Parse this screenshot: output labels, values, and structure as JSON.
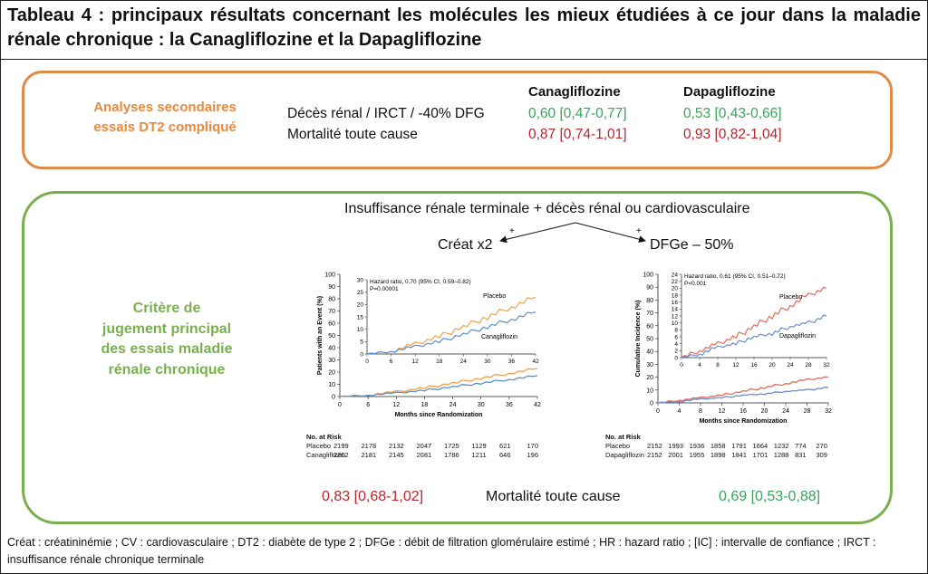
{
  "title": "Tableau 4 : principaux résultats concernant les molécules les mieux étudiées à ce jour dans la maladie rénale chronique : la Canagliflozine et la Dapagliflozine",
  "secondary": {
    "label_line1": "Analyses secondaires",
    "label_line2": "essais DT2 compliqué",
    "col1": "Canagliflozine",
    "col2": "Dapagliflozine",
    "rows": [
      {
        "label": "Décès rénal / IRCT / -40% DFG",
        "cana": "0,60 [0,47-0,77]",
        "dapa": "0,53 [0,43-0,66]"
      },
      {
        "label": "Mortalité toute cause",
        "cana": "0,87 [0,74-1,01]",
        "dapa": "0,93 [0,82-1,04]"
      }
    ]
  },
  "primary": {
    "label_lines": [
      "Critère de",
      "jugement principal",
      "des essais maladie",
      "rénale chronique"
    ],
    "endpoint": "Insuffisance rénale terminale + décès rénal ou cardiovasculaire",
    "component_left": "Créat x2",
    "component_right": "DFGe – 50%",
    "plus": "+",
    "bottom_left": "0,83 [0,68-1,02]",
    "bottom_center": "Mortalité toute cause",
    "bottom_right": "0,69 [0,53-0,88]"
  },
  "chart_data": [
    {
      "type": "line",
      "title": "",
      "xlabel": "Months since Randomization",
      "ylabel": "Patients with an Event (%)",
      "xlim": [
        0,
        42
      ],
      "ylim": [
        0,
        100
      ],
      "xticks": [
        0,
        6,
        12,
        18,
        24,
        30,
        36,
        42
      ],
      "yticks": [
        0,
        10,
        20,
        30,
        40,
        50,
        60,
        70,
        80,
        90,
        100
      ],
      "series": [
        {
          "name": "Placebo",
          "color": "#f0a04b",
          "x": [
            0,
            6,
            12,
            18,
            24,
            30,
            36,
            42
          ],
          "y": [
            0,
            1,
            4,
            7,
            11,
            15,
            19,
            23
          ]
        },
        {
          "name": "Canagliflozin",
          "color": "#5b8fd1",
          "x": [
            0,
            6,
            12,
            18,
            24,
            30,
            36,
            42
          ],
          "y": [
            0,
            1,
            3,
            5,
            8,
            11,
            14,
            17
          ]
        }
      ],
      "inset": {
        "annotation_line1": "Hazard ratio, 0.70 (95% CI, 0.59–0.82)",
        "annotation_line2": "P=0.00001",
        "xticks": [
          0,
          6,
          12,
          18,
          24,
          30,
          36,
          42
        ],
        "yticks": [
          0,
          5,
          10,
          15,
          20,
          25,
          30
        ],
        "ylim": [
          0,
          30
        ],
        "label_placebo": "Placebo",
        "label_drug": "Canagliflozin"
      },
      "risk": {
        "heading": "No. at Risk",
        "rows": [
          {
            "name": "Placebo",
            "values": [
              "2199",
              "2178",
              "2132",
              "2047",
              "1725",
              "1129",
              "621",
              "170"
            ]
          },
          {
            "name": "Canagliflozin",
            "values": [
              "2202",
              "2181",
              "2145",
              "2081",
              "1786",
              "1211",
              "646",
              "196"
            ]
          }
        ]
      }
    },
    {
      "type": "line",
      "title": "",
      "xlabel": "Months since Randomization",
      "ylabel": "Cumulative Incidence (%)",
      "xlim": [
        0,
        32
      ],
      "ylim": [
        0,
        100
      ],
      "xticks": [
        0,
        4,
        8,
        12,
        16,
        20,
        24,
        28,
        32
      ],
      "yticks": [
        0,
        10,
        20,
        30,
        40,
        50,
        60,
        70,
        80,
        90,
        100
      ],
      "series": [
        {
          "name": "Placebo",
          "color": "#e36b5c",
          "x": [
            0,
            4,
            8,
            12,
            16,
            20,
            24,
            28,
            32
          ],
          "y": [
            0,
            2,
            4,
            6,
            9,
            12,
            15,
            18,
            20
          ]
        },
        {
          "name": "Dapagliflozin",
          "color": "#6b8fc9",
          "x": [
            0,
            4,
            8,
            12,
            16,
            20,
            24,
            28,
            32
          ],
          "y": [
            0,
            1,
            3,
            4,
            6,
            7,
            9,
            10,
            12
          ]
        }
      ],
      "inset": {
        "annotation_line1": "Hazard ratio, 0.61 (95% CI, 0.51–0.72)",
        "annotation_line2": "P<0.001",
        "xticks": [
          0,
          4,
          8,
          12,
          16,
          20,
          24,
          28,
          32
        ],
        "yticks": [
          0,
          2,
          4,
          6,
          8,
          10,
          12,
          14,
          16,
          18,
          20,
          22,
          24
        ],
        "ylim": [
          0,
          24
        ],
        "label_placebo": "Placebo",
        "label_drug": "Dapagliflozin"
      },
      "risk": {
        "heading": "No. at Risk",
        "rows": [
          {
            "name": "Placebo",
            "values": [
              "2152",
              "1993",
              "1936",
              "1858",
              "1791",
              "1664",
              "1232",
              "774",
              "270"
            ]
          },
          {
            "name": "Dapagliflozin",
            "values": [
              "2152",
              "2001",
              "1955",
              "1898",
              "1841",
              "1701",
              "1288",
              "831",
              "309"
            ]
          }
        ]
      }
    }
  ],
  "footnote": "Créat : créatininémie ; CV : cardiovasculaire ; DT2 : diabète de type 2 ; DFGe : débit de filtration glomérulaire estimé ; HR : hazard ratio ; [IC] : intervalle de confiance ; IRCT : insuffisance rénale chronique terminale"
}
